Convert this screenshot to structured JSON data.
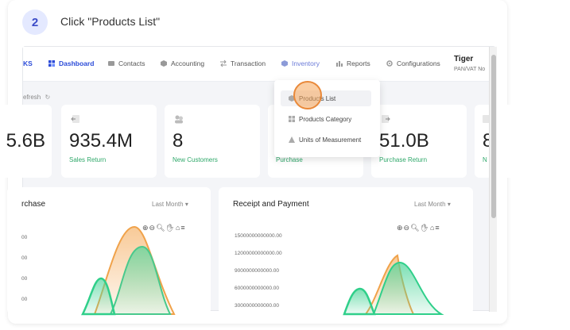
{
  "step": {
    "number": "2",
    "instruction": "Click \"Products List\""
  },
  "nav": {
    "logo_fragment": "KS",
    "items": [
      {
        "label": "Dashboard",
        "icon": "grid-icon"
      },
      {
        "label": "Contacts",
        "icon": "contacts-icon"
      },
      {
        "label": "Accounting",
        "icon": "cube-icon"
      },
      {
        "label": "Transaction",
        "icon": "swap-icon"
      },
      {
        "label": "Inventory",
        "icon": "box-icon"
      },
      {
        "label": "Reports",
        "icon": "chart-icon"
      },
      {
        "label": "Configurations",
        "icon": "gear-icon"
      }
    ],
    "user_name": "Tiger",
    "user_sub": "PAN/VAT No"
  },
  "refresh_label": "efresh",
  "stats": [
    {
      "value": "5.6B",
      "label": ""
    },
    {
      "value": "935.4M",
      "label": "Sales Return"
    },
    {
      "value": "8",
      "label": "New Customers"
    },
    {
      "value": "",
      "label": "Purchase"
    },
    {
      "value": "51.0B",
      "label": "Purchase Return"
    },
    {
      "value": "8",
      "label": "N"
    }
  ],
  "dropdown": {
    "items": [
      {
        "label": "Products List",
        "icon": "cube-icon"
      },
      {
        "label": "Products Category",
        "icon": "grid-icon"
      },
      {
        "label": "Units of Measurement",
        "icon": "triangle-icon"
      }
    ]
  },
  "panels": {
    "left": {
      "title": "rchase",
      "period": "Last Month",
      "yticks": [
        "00",
        "00",
        "00",
        "00"
      ]
    },
    "right": {
      "title": "Receipt and Payment",
      "period": "Last Month",
      "yticks": [
        "15000000000000.00",
        "12000000000000.00",
        "9000000000000.00",
        "6000000000000.00",
        "3000000000000.00"
      ]
    }
  },
  "colors": {
    "accent": "#2b4bd8",
    "green": "#2fcf8a",
    "orange": "#f0a24a"
  }
}
